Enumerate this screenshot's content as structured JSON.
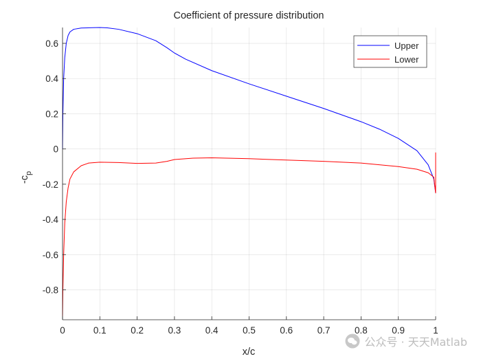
{
  "chart_data": {
    "type": "line",
    "title": "Coefficient of pressure distribution",
    "xlabel": "x/c",
    "ylabel": "-c_p",
    "ylabel_main": "-c",
    "ylabel_sub": "p",
    "xlim": [
      0,
      1
    ],
    "ylim": [
      -0.97,
      0.69
    ],
    "xticks": [
      0,
      0.1,
      0.2,
      0.3,
      0.4,
      0.5,
      0.6,
      0.7,
      0.8,
      0.9,
      1
    ],
    "xtick_labels": [
      "0",
      "0.1",
      "0.2",
      "0.3",
      "0.4",
      "0.5",
      "0.6",
      "0.7",
      "0.8",
      "0.9",
      "1"
    ],
    "yticks": [
      -0.8,
      -0.6,
      -0.4,
      -0.2,
      0,
      0.2,
      0.4,
      0.6
    ],
    "ytick_labels": [
      "-0.8",
      "-0.6",
      "-0.4",
      "-0.2",
      "0",
      "0.2",
      "0.4",
      "0.6"
    ],
    "grid": true,
    "legend_position": "top-right",
    "series": [
      {
        "name": "Upper",
        "color": "#0000ff",
        "x": [
          0,
          0.001,
          0.003,
          0.006,
          0.01,
          0.015,
          0.02,
          0.03,
          0.05,
          0.08,
          0.1,
          0.12,
          0.15,
          0.2,
          0.25,
          0.28,
          0.3,
          0.33,
          0.4,
          0.5,
          0.6,
          0.7,
          0.8,
          0.85,
          0.9,
          0.95,
          0.98,
          0.995,
          1.0
        ],
        "values": [
          0,
          0.2,
          0.4,
          0.52,
          0.6,
          0.645,
          0.665,
          0.68,
          0.687,
          0.689,
          0.69,
          0.688,
          0.68,
          0.655,
          0.615,
          0.575,
          0.545,
          0.51,
          0.445,
          0.37,
          0.3,
          0.23,
          0.155,
          0.112,
          0.06,
          -0.01,
          -0.09,
          -0.17,
          -0.25
        ]
      },
      {
        "name": "Lower",
        "color": "#ff0000",
        "x": [
          0,
          0.001,
          0.003,
          0.006,
          0.01,
          0.015,
          0.02,
          0.03,
          0.05,
          0.07,
          0.1,
          0.15,
          0.2,
          0.25,
          0.28,
          0.3,
          0.35,
          0.4,
          0.5,
          0.6,
          0.7,
          0.8,
          0.9,
          0.95,
          0.98,
          0.995,
          1.0,
          1.0
        ],
        "values": [
          -0.95,
          -0.8,
          -0.6,
          -0.42,
          -0.3,
          -0.22,
          -0.17,
          -0.13,
          -0.095,
          -0.08,
          -0.075,
          -0.077,
          -0.082,
          -0.08,
          -0.07,
          -0.06,
          -0.052,
          -0.05,
          -0.055,
          -0.063,
          -0.07,
          -0.08,
          -0.1,
          -0.115,
          -0.135,
          -0.16,
          -0.25,
          -0.02
        ]
      }
    ]
  },
  "watermark": {
    "text": "公众号 · 天天Matlab",
    "icon": "wechat-icon"
  }
}
